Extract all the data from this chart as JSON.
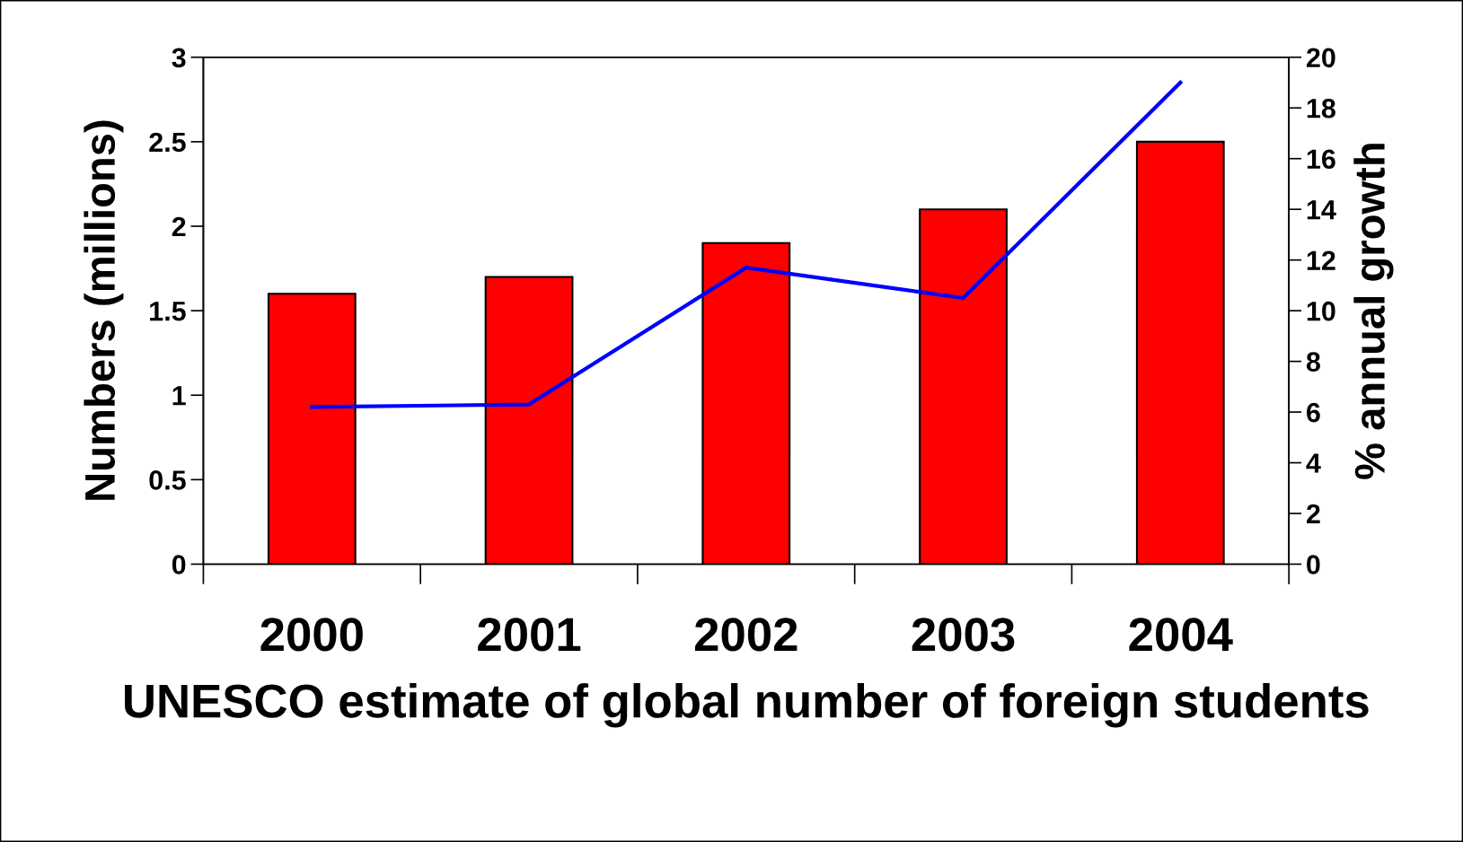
{
  "chart_data": {
    "type": "bar",
    "xlabel": "UNESCO estimate of global number of foreign students",
    "ylabel": "Numbers (millions)",
    "y2label": "% annual growth",
    "categories": [
      "2000",
      "2001",
      "2002",
      "2003",
      "2004"
    ],
    "series": [
      {
        "color": "#ff0000",
        "values": [
          1.6,
          1.7,
          1.9,
          2.1,
          2.5
        ]
      },
      {
        "type": "line",
        "axis": "y2",
        "color": "#0000ff",
        "values": [
          6.2,
          6.3,
          11.7,
          10.5,
          19.0
        ]
      }
    ],
    "ylim": [
      0,
      3
    ],
    "yticks": [
      0,
      0.5,
      1,
      1.5,
      2,
      2.5,
      3
    ],
    "y2lim": [
      0,
      20
    ],
    "y2ticks": [
      0,
      2,
      4,
      6,
      8,
      10,
      12,
      14,
      16,
      18,
      20
    ],
    "grid": false,
    "legend": false,
    "marker": "none",
    "line_style": "solid"
  }
}
